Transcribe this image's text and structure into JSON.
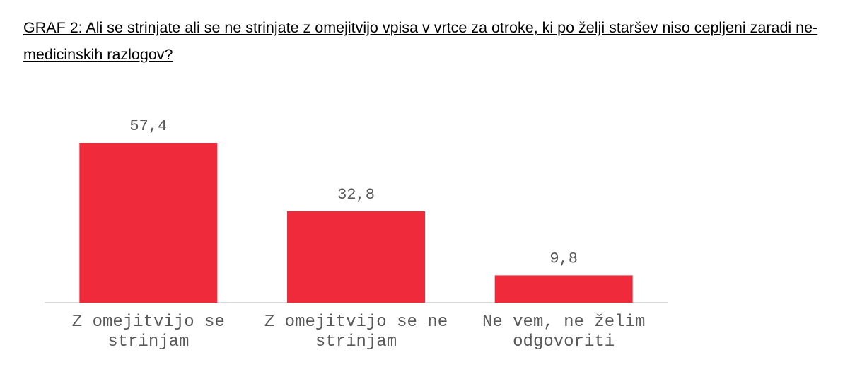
{
  "chart_data": {
    "type": "bar",
    "title": "GRAF 2: Ali se strinjate ali se ne strinjate z omejitvijo vpisa v vrtce za otroke, ki po želji staršev niso cepljeni zaradi ne-medicinskih razlogov?",
    "categories": [
      "Z omejitvijo se strinjam",
      "Z omejitvijo se ne strinjam",
      "Ne vem, ne želim odgovoriti"
    ],
    "values": [
      57.4,
      32.8,
      9.8
    ],
    "value_labels": [
      "57,4",
      "32,8",
      "9,8"
    ],
    "color": "#ee2a3b"
  }
}
